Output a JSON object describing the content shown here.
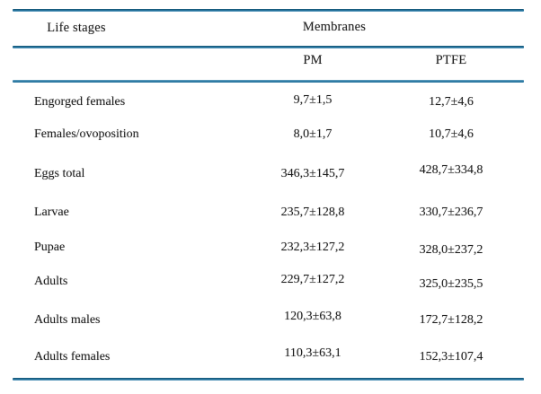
{
  "page": {
    "background_color": "#ffffff",
    "rule_color": "#1f6d96",
    "text_color": "#1d1d1d"
  },
  "table": {
    "header": {
      "life_stages": "Life stages",
      "membranes": "Membranes",
      "pm": "PM",
      "ptfe": "PTFE"
    },
    "rows": [
      {
        "label": "Engorged females",
        "pm": "9,7±1,5",
        "ptfe": "12,7±4,6"
      },
      {
        "label": "Females/ovoposition",
        "pm": "8,0±1,7",
        "ptfe": "10,7±4,6"
      },
      {
        "label": "Eggs total",
        "pm": "346,3±145,7",
        "ptfe": "428,7±334,8"
      },
      {
        "label": "Larvae",
        "pm": "235,7±128,8",
        "ptfe": "330,7±236,7"
      },
      {
        "label": "Pupae",
        "pm": "232,3±127,2",
        "ptfe": "328,0±237,2"
      },
      {
        "label": "Adults",
        "pm": "229,7±127,2",
        "ptfe": "325,0±235,5"
      },
      {
        "label": "Adults males",
        "pm": "120,3±63,8",
        "ptfe": "172,7±128,2"
      },
      {
        "label": "Adults females",
        "pm": "110,3±63,1",
        "ptfe": "152,3±107,4"
      }
    ]
  },
  "chart_data": {
    "type": "table",
    "title": "",
    "columns": [
      "Life stages",
      "PM",
      "PTFE"
    ],
    "rows": [
      [
        "Engorged females",
        "9,7±1,5",
        "12,7±4,6"
      ],
      [
        "Females/ovoposition",
        "8,0±1,7",
        "10,7±4,6"
      ],
      [
        "Eggs total",
        "346,3±145,7",
        "428,7±334,8"
      ],
      [
        "Larvae",
        "235,7±128,8",
        "330,7±236,7"
      ],
      [
        "Pupae",
        "232,3±127,2",
        "328,0±237,2"
      ],
      [
        "Adults",
        "229,7±127,2",
        "325,0±235,5"
      ],
      [
        "Adults males",
        "120,3±63,8",
        "172,7±128,2"
      ],
      [
        "Adults females",
        "110,3±63,1",
        "152,3±107,4"
      ]
    ]
  }
}
